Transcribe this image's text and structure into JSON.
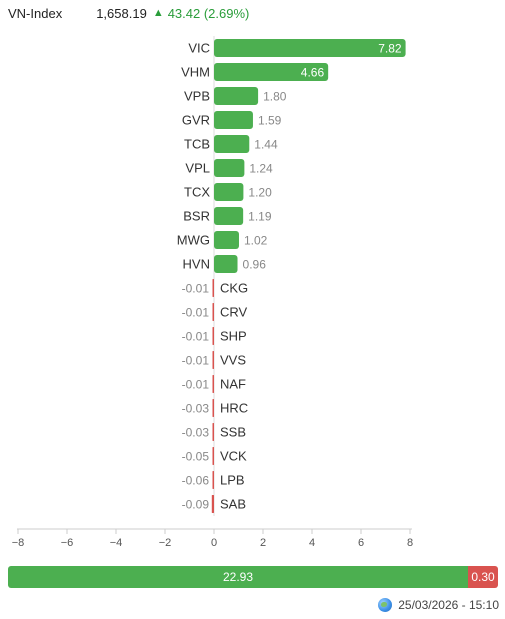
{
  "index": {
    "name": "VN-Index",
    "value": "1,658.19",
    "arrow": "▲",
    "change": "43.42 (2.69%)"
  },
  "chart_data": {
    "type": "bar",
    "orientation": "horizontal",
    "categories": [
      "VIC",
      "VHM",
      "VPB",
      "GVR",
      "TCB",
      "VPL",
      "TCX",
      "BSR",
      "MWG",
      "HVN",
      "CKG",
      "CRV",
      "SHP",
      "VVS",
      "NAF",
      "HRC",
      "SSB",
      "VCK",
      "LPB",
      "SAB"
    ],
    "values": [
      7.82,
      4.66,
      1.8,
      1.59,
      1.44,
      1.24,
      1.2,
      1.19,
      1.02,
      0.96,
      -0.01,
      -0.01,
      -0.01,
      -0.01,
      -0.01,
      -0.03,
      -0.03,
      -0.05,
      -0.06,
      -0.09
    ],
    "value_labels": [
      "7.82",
      "4.66",
      "1.80",
      "1.59",
      "1.44",
      "1.24",
      "1.20",
      "1.19",
      "1.02",
      "0.96",
      "-0.01",
      "-0.01",
      "-0.01",
      "-0.01",
      "-0.01",
      "-0.03",
      "-0.03",
      "-0.05",
      "-0.06",
      "-0.09"
    ],
    "xlim": [
      -8,
      8
    ],
    "xticks": [
      -8,
      -6,
      -4,
      -2,
      0,
      2,
      4,
      6,
      8
    ],
    "xtick_labels": [
      "−8",
      "−6",
      "−4",
      "−2",
      "0",
      "2",
      "4",
      "6",
      "8"
    ],
    "grid": false,
    "colors": {
      "positive": "#4caf50",
      "negative": "#d9534f",
      "axis": "#cccccc",
      "label": "#333333",
      "value": "#888888"
    }
  },
  "breadth": {
    "advance_label": "22.93",
    "decline_label": "0.30",
    "advance_value": 22.93,
    "decline_value": 0.3
  },
  "footer": {
    "icon": "globe-icon",
    "timestamp": "25/03/2026 - 15:10"
  }
}
